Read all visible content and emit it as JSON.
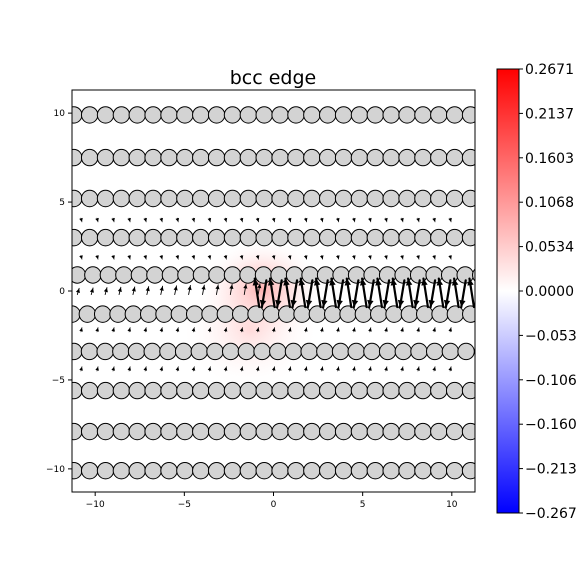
{
  "chart_data": {
    "type": "scatter",
    "title": "bcc edge",
    "xlabel": "",
    "ylabel": "",
    "xlim": [
      -11.3,
      11.3
    ],
    "ylim": [
      -11.3,
      11.3
    ],
    "x_ticks": [
      -10,
      -5,
      0,
      5,
      10
    ],
    "y_ticks": [
      -10,
      -5,
      0,
      5,
      10
    ],
    "atom_rows": [
      {
        "y": 9.9,
        "x_start": -11.2,
        "spacing": 0.89,
        "count": 26
      },
      {
        "y": 7.5,
        "x_start": -11.2,
        "spacing": 0.89,
        "count": 26
      },
      {
        "y": 5.2,
        "x_start": -11.2,
        "spacing": 0.89,
        "count": 26
      },
      {
        "y": 3.0,
        "x_start": -11.2,
        "spacing": 0.89,
        "count": 26
      },
      {
        "y": 0.9,
        "x_start": -11.0,
        "spacing": 0.87,
        "count": 27
      },
      {
        "y": -1.3,
        "x_start": -11.3,
        "spacing": 0.86,
        "count": 27
      },
      {
        "y": -3.4,
        "x_start": -11.2,
        "spacing": 0.88,
        "count": 26
      },
      {
        "y": -5.6,
        "x_start": -11.2,
        "spacing": 0.89,
        "count": 26
      },
      {
        "y": -7.9,
        "x_start": -11.2,
        "spacing": 0.89,
        "count": 26
      },
      {
        "y": -10.1,
        "x_start": -11.2,
        "spacing": 0.89,
        "count": 26
      }
    ],
    "colorbar": {
      "colormap": "bwr",
      "min": -0.267,
      "max": 0.2671,
      "tick_labels": [
        "0.2671",
        "0.2137",
        "0.1603",
        "0.1068",
        "0.0534",
        "0.0000",
        "-0.053",
        "-0.106",
        "-0.160",
        "-0.213",
        "-0.267"
      ]
    },
    "grid": false,
    "legend": "none"
  },
  "colors": {
    "atom_fill": "#d3d3d3",
    "atom_stroke": "#000000",
    "arrow": "#000000",
    "positive": "#ff0000",
    "negative": "#0000ff"
  }
}
